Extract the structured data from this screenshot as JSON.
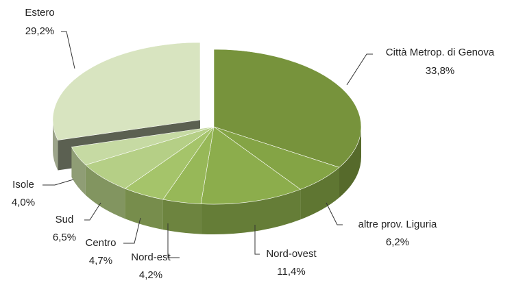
{
  "chart_data": {
    "type": "pie3d",
    "categories": [
      "Città Metrop. di Genova",
      "altre prov. Liguria",
      "Nord-ovest",
      "Nord-est",
      "Centro",
      "Sud",
      "Isole",
      "Estero"
    ],
    "values": [
      33.8,
      6.2,
      11.4,
      4.2,
      4.7,
      6.5,
      4.0,
      29.2
    ],
    "value_labels": [
      "33,8%",
      "6,2%",
      "11,4%",
      "4,2%",
      "4,7%",
      "6,5%",
      "4,0%",
      "29,2%"
    ],
    "colors": [
      "#77933c",
      "#84a445",
      "#8cad4c",
      "#97b858",
      "#a5c46a",
      "#b5cf86",
      "#c6daa3",
      "#d8e4c0"
    ],
    "exploded": [
      false,
      false,
      false,
      false,
      false,
      false,
      false,
      true
    ]
  }
}
